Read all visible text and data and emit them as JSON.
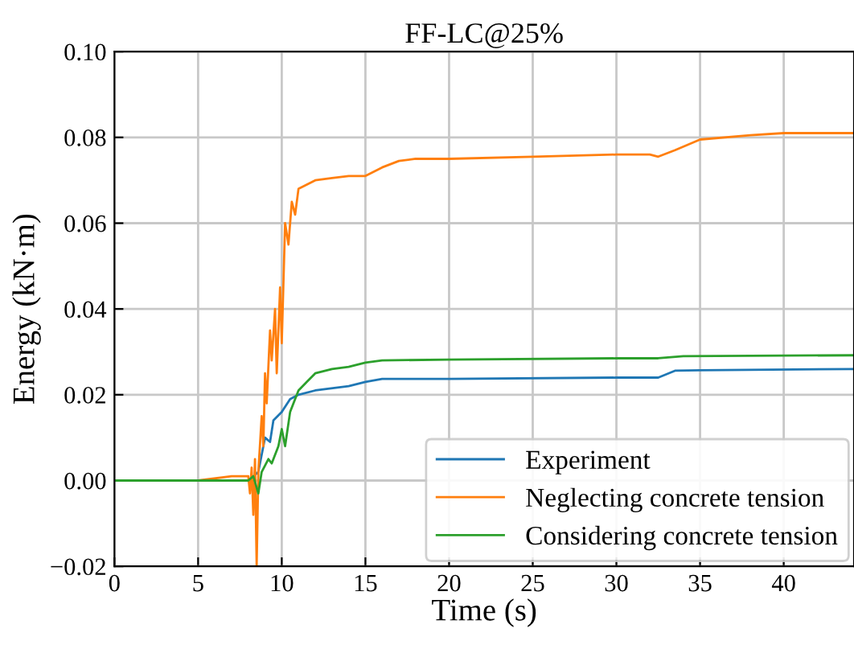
{
  "chart_data": {
    "type": "line",
    "title": "FF-LC@25%",
    "xlabel": "Time (s)",
    "ylabel": "Energy (kN·m)",
    "xlim": [
      0,
      44.2
    ],
    "xticks": [
      0,
      5,
      10,
      15,
      20,
      25,
      30,
      35,
      40
    ],
    "ylim": [
      -0.02,
      0.1
    ],
    "yticks": [
      {
        "value": -0.02,
        "label": "−0.02"
      },
      {
        "value": 0.0,
        "label": "0.00"
      },
      {
        "value": 0.02,
        "label": "0.02"
      },
      {
        "value": 0.04,
        "label": "0.04"
      },
      {
        "value": 0.06,
        "label": "0.06"
      },
      {
        "value": 0.08,
        "label": "0.08"
      },
      {
        "value": 0.1,
        "label": "0.10"
      }
    ],
    "grid": true,
    "legend": "bottom right",
    "marker": "none",
    "line_style": "solid",
    "series": [
      {
        "name": "Experiment",
        "color": "#1f77b4",
        "x": [
          0,
          8,
          8.6,
          9,
          9.3,
          9.5,
          10,
          10.5,
          11,
          12,
          14,
          15,
          16,
          20,
          30,
          32.5,
          33.5,
          35,
          44.2
        ],
        "values": [
          0,
          0,
          0.002,
          0.01,
          0.009,
          0.014,
          0.016,
          0.019,
          0.02,
          0.021,
          0.022,
          0.023,
          0.0237,
          0.0237,
          0.024,
          0.024,
          0.0256,
          0.0257,
          0.026
        ]
      },
      {
        "name": "Neglecting concrete tension",
        "color": "#ff7f0e",
        "x": [
          0,
          5,
          7,
          8,
          8.1,
          8.2,
          8.3,
          8.4,
          8.5,
          8.6,
          8.8,
          8.9,
          9.0,
          9.1,
          9.3,
          9.4,
          9.6,
          9.7,
          9.9,
          10.0,
          10.2,
          10.4,
          10.6,
          10.8,
          11,
          11.5,
          12,
          13,
          14,
          15,
          16,
          17,
          18,
          20,
          25,
          30,
          32,
          32.5,
          33.5,
          35,
          38,
          40,
          44.2
        ],
        "values": [
          0,
          0,
          0.001,
          0.001,
          -0.003,
          0.003,
          -0.008,
          0.005,
          -0.02,
          0.002,
          0.015,
          0.008,
          0.025,
          0.018,
          0.035,
          0.028,
          0.04,
          0.025,
          0.045,
          0.032,
          0.06,
          0.055,
          0.065,
          0.062,
          0.068,
          0.069,
          0.07,
          0.0705,
          0.071,
          0.071,
          0.073,
          0.0745,
          0.075,
          0.075,
          0.0755,
          0.076,
          0.076,
          0.0755,
          0.077,
          0.0795,
          0.0805,
          0.081,
          0.081
        ]
      },
      {
        "name": "Considering concrete tension",
        "color": "#2ca02c",
        "x": [
          0,
          8,
          8.3,
          8.6,
          8.8,
          9.2,
          9.4,
          9.8,
          10,
          10.2,
          10.5,
          11,
          11.5,
          12,
          13,
          14,
          15,
          16,
          20,
          30,
          32.5,
          34,
          44.2
        ],
        "values": [
          0,
          0,
          0.001,
          -0.003,
          0.002,
          0.005,
          0.004,
          0.008,
          0.012,
          0.008,
          0.016,
          0.021,
          0.023,
          0.025,
          0.026,
          0.0265,
          0.0275,
          0.028,
          0.0282,
          0.0285,
          0.0285,
          0.029,
          0.0292
        ]
      }
    ]
  }
}
